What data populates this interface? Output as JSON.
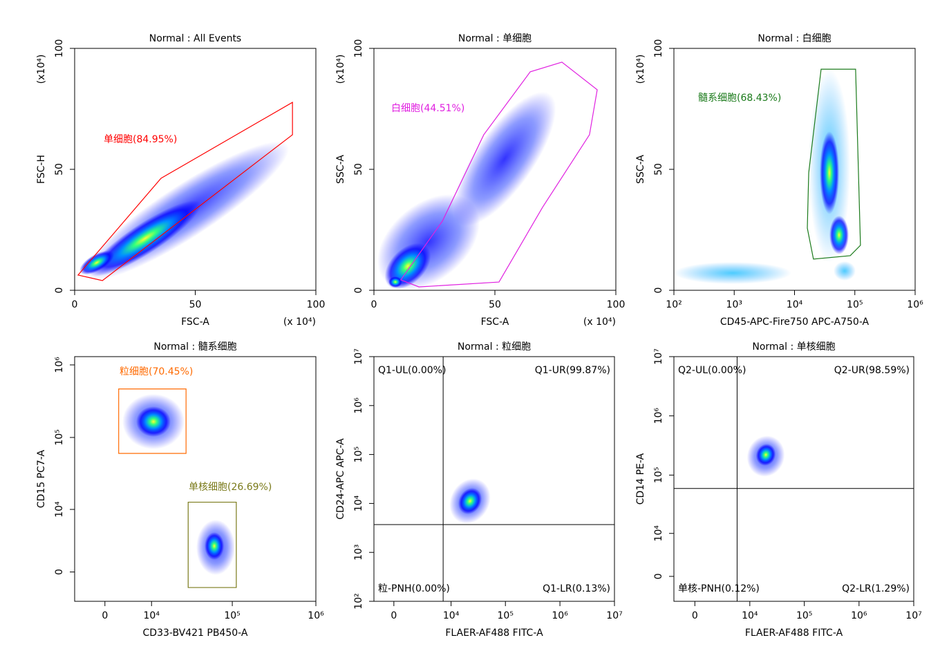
{
  "chart_data": [
    {
      "type": "scatter",
      "title": "Normal : All Events",
      "xlabel": "FSC-A",
      "ylabel": "FSC-H",
      "x_multiplier": "(x 10⁴)",
      "y_multiplier": "(x10⁴)",
      "xscale": "linear",
      "yscale": "linear",
      "xlim": [
        0,
        100
      ],
      "ylim": [
        0,
        100
      ],
      "xticks": [
        0,
        50,
        100
      ],
      "yticks": [
        0,
        50,
        100
      ],
      "gates": [
        {
          "label": "单细胞(84.95%)",
          "color": "#ff0000",
          "x": [
            1.4,
            11.5,
            90.3,
            90.3,
            35.8
          ],
          "y": [
            6.3,
            4,
            64.3,
            77.7,
            46.3
          ]
        }
      ]
    },
    {
      "type": "scatter",
      "title": "Normal : 单细胞",
      "xlabel": "FSC-A",
      "ylabel": "SSC-A",
      "x_multiplier": "(x 10⁴)",
      "y_multiplier": "(x10⁴)",
      "xscale": "linear",
      "yscale": "linear",
      "xlim": [
        0,
        100
      ],
      "ylim": [
        0,
        100
      ],
      "xticks": [
        0,
        50,
        100
      ],
      "yticks": [
        0,
        50,
        100
      ],
      "gates": [
        {
          "label": "白细胞(44.51%)",
          "color": "#e020e0",
          "x": [
            11.1,
            18.6,
            51.7,
            69.7,
            89.1,
            92.3,
            77.7,
            64.6,
            45.4,
            28.3
          ],
          "y": [
            4.3,
            1.4,
            3.4,
            34.3,
            64.3,
            82.9,
            94.3,
            90.3,
            64.3,
            28.6
          ]
        }
      ]
    },
    {
      "type": "scatter",
      "title": "Normal : 白细胞",
      "xlabel": "CD45-APC-Fire750 APC-A750-A",
      "ylabel": "SSC-A",
      "y_multiplier": "(x10⁴)",
      "xscale": "log",
      "yscale": "linear",
      "xlim": [
        100,
        1000000
      ],
      "ylim": [
        0,
        100
      ],
      "xticks": [
        {
          "value": 100,
          "label": "10²"
        },
        {
          "value": 1000,
          "label": "10³"
        },
        {
          "value": 10000,
          "label": "10⁴"
        },
        {
          "value": 100000,
          "label": "10⁵"
        },
        {
          "value": 1000000,
          "label": "10⁶"
        }
      ],
      "yticks": [
        0,
        50,
        100
      ],
      "gates": [
        {
          "label": "髓系细胞(68.43%)",
          "color": "#1a7a1a",
          "x": [
            27600,
            103000,
            124000,
            83800,
            20600,
            16300,
            17200
          ],
          "y": [
            91.4,
            91.4,
            18.6,
            14.3,
            12.9,
            25.7,
            48.6
          ]
        }
      ]
    },
    {
      "type": "scatter",
      "title": "Normal : 髓系细胞",
      "xlabel": "CD33-BV421 PB450-A",
      "ylabel": "CD15 PC7-A",
      "xscale": "biex",
      "x_biex_width": 6000,
      "yscale": "biex",
      "y_biex_width": 2800,
      "xlim": [
        -5600,
        1000000
      ],
      "ylim": [
        -3000,
        1300000
      ],
      "xticks": [
        0,
        {
          "value": 10000,
          "label": "10⁴"
        },
        {
          "value": 100000,
          "label": "10⁵"
        },
        {
          "value": 1000000,
          "label": "10⁶"
        }
      ],
      "yticks": [
        0,
        {
          "value": 10000,
          "label": "10⁴"
        },
        {
          "value": 100000,
          "label": "10⁵"
        },
        {
          "value": 1000000,
          "label": "10⁶"
        }
      ],
      "gates": [
        {
          "label": "粒细胞(70.45%)",
          "color": "#ff6a00",
          "x": [
            2330,
            27700,
            27700,
            2330
          ],
          "y": [
            466000,
            466000,
            60300,
            60300
          ]
        },
        {
          "label": "单核细胞(26.69%)",
          "color": "#7a7a1a",
          "x": [
            29400,
            111700,
            111700,
            29400
          ],
          "y": [
            12670,
            12670,
            -1440,
            -1440
          ]
        }
      ]
    },
    {
      "type": "scatter",
      "title": "Normal : 粒细胞",
      "xlabel": "FLAER-AF488 FITC-A",
      "ylabel": "CD24-APC APC-A",
      "xscale": "biex",
      "x_biex_width": 1800,
      "yscale": "log",
      "xlim": [
        -1700,
        10000000
      ],
      "ylim": [
        100,
        10000000
      ],
      "xticks": [
        0,
        {
          "value": 10000,
          "label": "10⁴"
        },
        {
          "value": 100000,
          "label": "10⁵"
        },
        {
          "value": 1000000,
          "label": "10⁶"
        },
        {
          "value": 10000000,
          "label": "10⁷"
        }
      ],
      "yticks": [
        {
          "value": 100,
          "label": "10²"
        },
        {
          "value": 1000,
          "label": "10³"
        },
        {
          "value": 10000,
          "label": "10⁴"
        },
        {
          "value": 100000,
          "label": "10⁵"
        },
        {
          "value": 1000000,
          "label": "10⁶"
        },
        {
          "value": 10000000,
          "label": "10⁷"
        }
      ],
      "quadrant": {
        "x": 7100,
        "y": 3700,
        "labels": [
          "Q1-UL(0.00%)",
          "Q1-UR(99.87%)",
          "粒-PNH(0.00%)",
          "Q1-LR(0.13%)"
        ]
      }
    },
    {
      "type": "scatter",
      "title": "Normal : 单核细胞",
      "xlabel": "FLAER-AF488 FITC-A",
      "ylabel": "CD14 PE-A",
      "xscale": "biex",
      "x_biex_width": 2000,
      "yscale": "biex",
      "y_biex_width": 3900,
      "xlim": [
        -2000,
        10000000
      ],
      "ylim": [
        -4400,
        10000000
      ],
      "xticks": [
        0,
        {
          "value": 10000,
          "label": "10⁴"
        },
        {
          "value": 100000,
          "label": "10⁵"
        },
        {
          "value": 1000000,
          "label": "10⁶"
        },
        {
          "value": 10000000,
          "label": "10⁷"
        }
      ],
      "yticks": [
        0,
        {
          "value": 10000,
          "label": "10⁴"
        },
        {
          "value": 100000,
          "label": "10⁵"
        },
        {
          "value": 1000000,
          "label": "10⁶"
        },
        {
          "value": 10000000,
          "label": "10⁷"
        }
      ],
      "quadrant": {
        "x": 5750,
        "y": 59300,
        "labels": [
          "Q2-UL(0.00%)",
          "Q2-UR(98.59%)",
          "单核-PNH(0.12%)",
          "Q2-LR(1.29%)"
        ]
      }
    }
  ]
}
